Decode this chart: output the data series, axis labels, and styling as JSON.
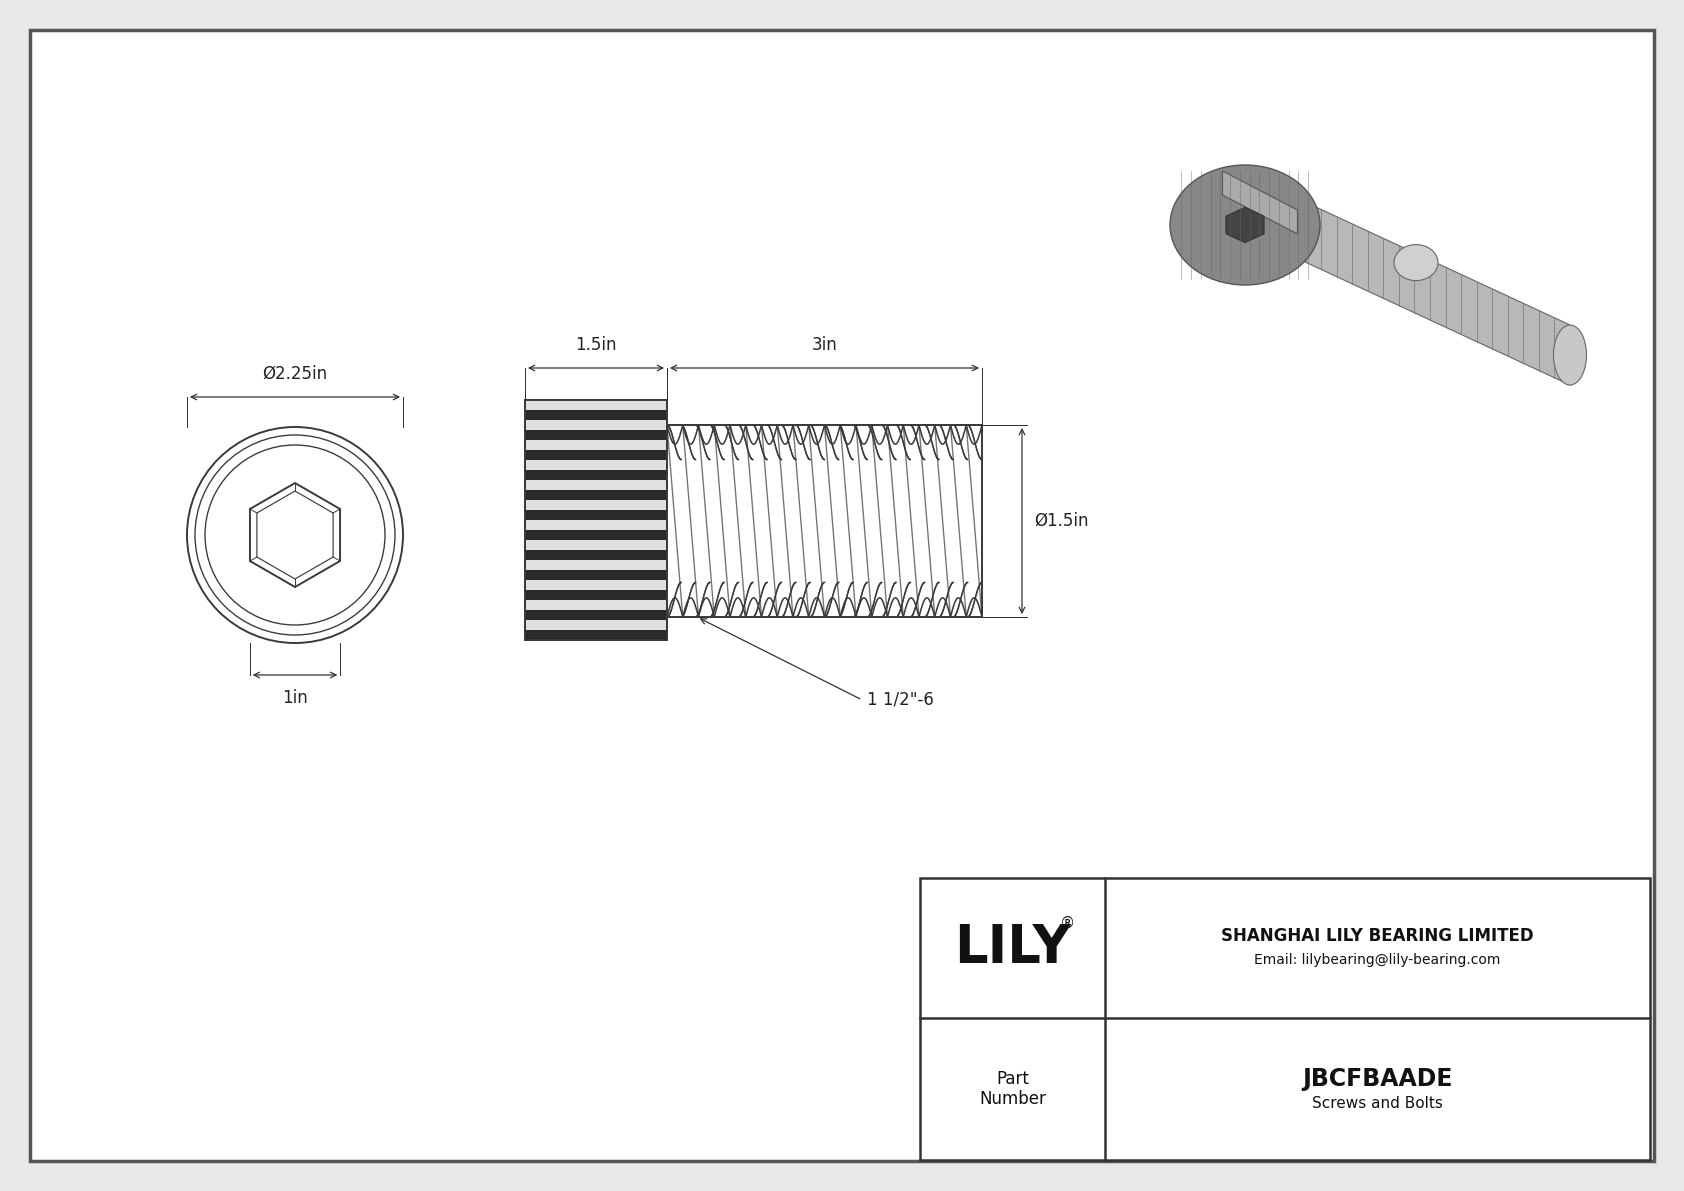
{
  "bg_color": "#e8e8e8",
  "paper_color": "#ffffff",
  "border_color": "#444444",
  "dc": "#3a3a3a",
  "dim_color": "#333333",
  "title": "JBCFBAADE",
  "subtitle": "Screws and Bolts",
  "company": "SHANGHAI LILY BEARING LIMITED",
  "email": "Email: lilybearing@lily-bearing.com",
  "logo_text": "LILY",
  "part_label": "Part\nNumber",
  "dim_diam_head": "Ø2.25in",
  "dim_socket": "1in",
  "dim_head_len": "1.5in",
  "dim_shank_len": "3in",
  "dim_shank_diam": "Ø1.5in",
  "dim_thread": "1 1/2\"-6",
  "lw_main": 1.4,
  "lw_dim": 0.9
}
